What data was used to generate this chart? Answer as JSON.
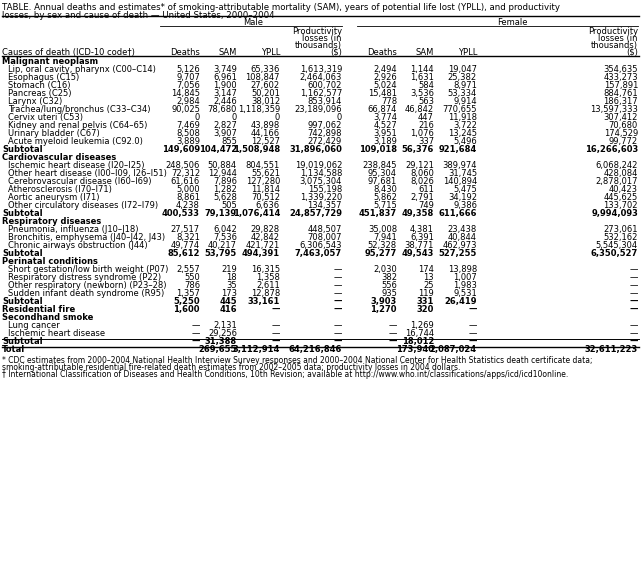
{
  "title1": "TABLE. Annual deaths and estimates* of smoking-attributable mortality (SAM), years of potential life lost (YPLL), and productivity",
  "title2": "losses, by sex and cause of death — United States, 2000–2004",
  "male_header": "Male",
  "female_header": "Female",
  "sections": [
    {
      "name": "Malignant neoplasm",
      "rows": [
        [
          "Lip, oral cavity, pharynx (C00–C14)",
          "5,126",
          "3,749",
          "65,336",
          "1,613,319",
          "2,494",
          "1,144",
          "19,047",
          "354,635"
        ],
        [
          "Esophagus (C15)",
          "9,707",
          "6,961",
          "108,847",
          "2,464,063",
          "2,926",
          "1,631",
          "25,382",
          "433,273"
        ],
        [
          "Stomach (C16)",
          "7,056",
          "1,900",
          "27,602",
          "600,702",
          "5,024",
          "584",
          "8,971",
          "157,891"
        ],
        [
          "Pancreas (C25)",
          "14,845",
          "3,147",
          "50,201",
          "1,162,577",
          "15,481",
          "3,536",
          "53,334",
          "884,761"
        ],
        [
          "Larynx (C32)",
          "2,984",
          "2,446",
          "38,012",
          "853,914",
          "778",
          "563",
          "9,914",
          "186,317"
        ],
        [
          "Trachea/lung/bronchus (C33–C34)",
          "90,025",
          "78,680",
          "1,118,359",
          "23,189,096",
          "66,874",
          "46,842",
          "770,655",
          "13,597,333"
        ],
        [
          "Cervix uteri (C53)",
          "0",
          "0",
          "0",
          "0",
          "3,774",
          "447",
          "11,918",
          "307,412"
        ],
        [
          "Kidney and renal pelvis (C64–65)",
          "7,469",
          "2,827",
          "43,898",
          "997,062",
          "4,527",
          "216",
          "3,722",
          "70,680"
        ],
        [
          "Urinary bladder (C67)",
          "8,508",
          "3,907",
          "44,166",
          "742,898",
          "3,951",
          "1,076",
          "13,245",
          "174,529"
        ],
        [
          "Acute myeloid leukemia (C92.0)",
          "3,889",
          "855",
          "12,527",
          "272,429",
          "3,189",
          "337",
          "5,496",
          "99,772"
        ]
      ],
      "subtotal": [
        "Subtotal",
        "149,609",
        "104,472",
        "1,508,948",
        "31,896,060",
        "109,018",
        "56,376",
        "921,684",
        "16,266,603"
      ]
    },
    {
      "name": "Cardiovascular diseases",
      "rows": [
        [
          "Ischemic heart disease (I20–I25)",
          "248,506",
          "50,884",
          "804,551",
          "19,019,062",
          "238,845",
          "29,121",
          "389,974",
          "6,068,242"
        ],
        [
          "Other heart disease (I00–I09, I26–I51)",
          "72,312",
          "12,944",
          "55,621",
          "1,134,588",
          "95,304",
          "8,060",
          "31,745",
          "428,084"
        ],
        [
          "Cerebrovascular disease (I60–I69)",
          "61,616",
          "7,896",
          "127,280",
          "3,075,304",
          "97,681",
          "8,026",
          "140,894",
          "2,878,017"
        ],
        [
          "Atherosclerosis (I70–I71)",
          "5,000",
          "1,282",
          "11,814",
          "155,198",
          "8,430",
          "611",
          "5,475",
          "40,423"
        ],
        [
          "Aortic aneurysm (I71)",
          "8,861",
          "5,628",
          "70,512",
          "1,339,220",
          "5,862",
          "2,791",
          "34,192",
          "445,625"
        ],
        [
          "Other circulatory diseases (I72–I79)",
          "4,238",
          "505",
          "6,636",
          "134,357",
          "5,715",
          "749",
          "9,386",
          "133,702"
        ]
      ],
      "subtotal": [
        "Subtotal",
        "400,533",
        "79,139",
        "1,076,414",
        "24,857,729",
        "451,837",
        "49,358",
        "611,666",
        "9,994,093"
      ]
    },
    {
      "name": "Respiratory diseases",
      "rows": [
        [
          "Pneumonia, influenza (J10–J18)",
          "27,517",
          "6,042",
          "29,828",
          "448,507",
          "35,008",
          "4,381",
          "23,438",
          "273,061"
        ],
        [
          "Bronchitis, emphysema (J40–J42, J43)",
          "8,321",
          "7,536",
          "42,842",
          "708,007",
          "7,941",
          "6,391",
          "40,844",
          "532,162"
        ],
        [
          "Chronic airways obstruction (J44)",
          "49,774",
          "40,217",
          "421,721",
          "6,306,543",
          "52,328",
          "38,771",
          "462,973",
          "5,545,304"
        ]
      ],
      "subtotal": [
        "Subtotal",
        "85,612",
        "53,795",
        "494,391",
        "7,463,057",
        "95,277",
        "49,543",
        "527,255",
        "6,350,527"
      ]
    },
    {
      "name": "Perinatal conditions",
      "rows": [
        [
          "Short gestation/low birth weight (P07)",
          "2,557",
          "219",
          "16,315",
          "—",
          "2,030",
          "174",
          "13,898",
          "—"
        ],
        [
          "Respiratory distress syndrome (P22)",
          "550",
          "18",
          "1,358",
          "—",
          "382",
          "13",
          "1,007",
          "—"
        ],
        [
          "Other respiratory (newborn) (P23–28)",
          "786",
          "35",
          "2,611",
          "—",
          "556",
          "25",
          "1,983",
          "—"
        ],
        [
          "Sudden infant death syndrome (R95)",
          "1,357",
          "173",
          "12,878",
          "—",
          "935",
          "119",
          "9,531",
          "—"
        ]
      ],
      "subtotal": [
        "Subtotal",
        "5,250",
        "445",
        "33,161",
        "—",
        "3,903",
        "331",
        "26,419",
        "—"
      ]
    }
  ],
  "residential_fire": [
    "Residential fire",
    "1,600",
    "416",
    "—",
    "—",
    "1,270",
    "320",
    "—",
    "—"
  ],
  "secondhand_smoke_header": "Secondhand smoke",
  "secondhand_smoke_rows": [
    [
      "Lung cancer",
      "—",
      "2,131",
      "—",
      "—",
      "—",
      "1,269",
      "—",
      "—"
    ],
    [
      "Ischemic heart disease",
      "—",
      "29,256",
      "—",
      "—",
      "—",
      "16,744",
      "—",
      "—"
    ]
  ],
  "secondhand_subtotal": [
    "Subtotal",
    "—",
    "31,388",
    "—",
    "—",
    "—",
    "18,012",
    "—",
    "—"
  ],
  "total": [
    "Total",
    "",
    "269,655",
    "3,112,914",
    "64,216,846",
    "",
    "173,940",
    "2,087,024",
    "32,611,223"
  ],
  "footnote1": "* CDC estimates from 2000–2004 National Health Interview Survey responses and 2000–2004 National Center for Health Statistics death certificate data;",
  "footnote2": "smoking-attributable residential fire-related death estimates from 2002–2005 data; productivity losses in 2004 dollars.",
  "footnote3": "† International Classification of Diseases and Health Conditions, 10th Revision; available at http://www.who.int/classifications/apps/icd/icd10online."
}
